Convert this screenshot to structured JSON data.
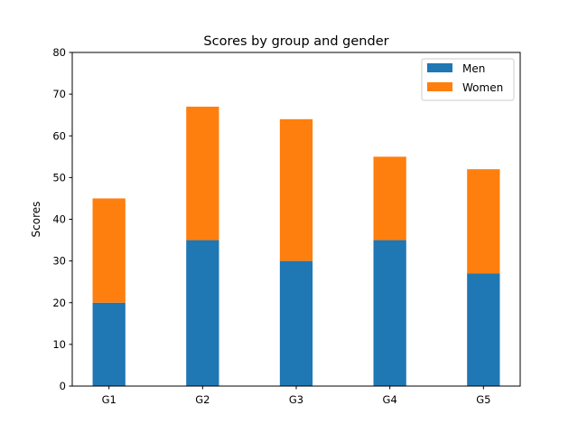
{
  "chart_data": {
    "type": "bar",
    "stacked": true,
    "title": "Scores by group and gender",
    "xlabel": "",
    "ylabel": "Scores",
    "categories": [
      "G1",
      "G2",
      "G3",
      "G4",
      "G5"
    ],
    "series": [
      {
        "name": "Men",
        "values": [
          20,
          35,
          30,
          35,
          27
        ],
        "color": "#1f77b4"
      },
      {
        "name": "Women",
        "values": [
          25,
          32,
          34,
          20,
          25
        ],
        "color": "#ff7f0e"
      }
    ],
    "ylim": [
      0,
      80
    ],
    "yticks": [
      0,
      10,
      20,
      30,
      40,
      50,
      60,
      70,
      80
    ],
    "grid": false,
    "legend": "top-right"
  }
}
